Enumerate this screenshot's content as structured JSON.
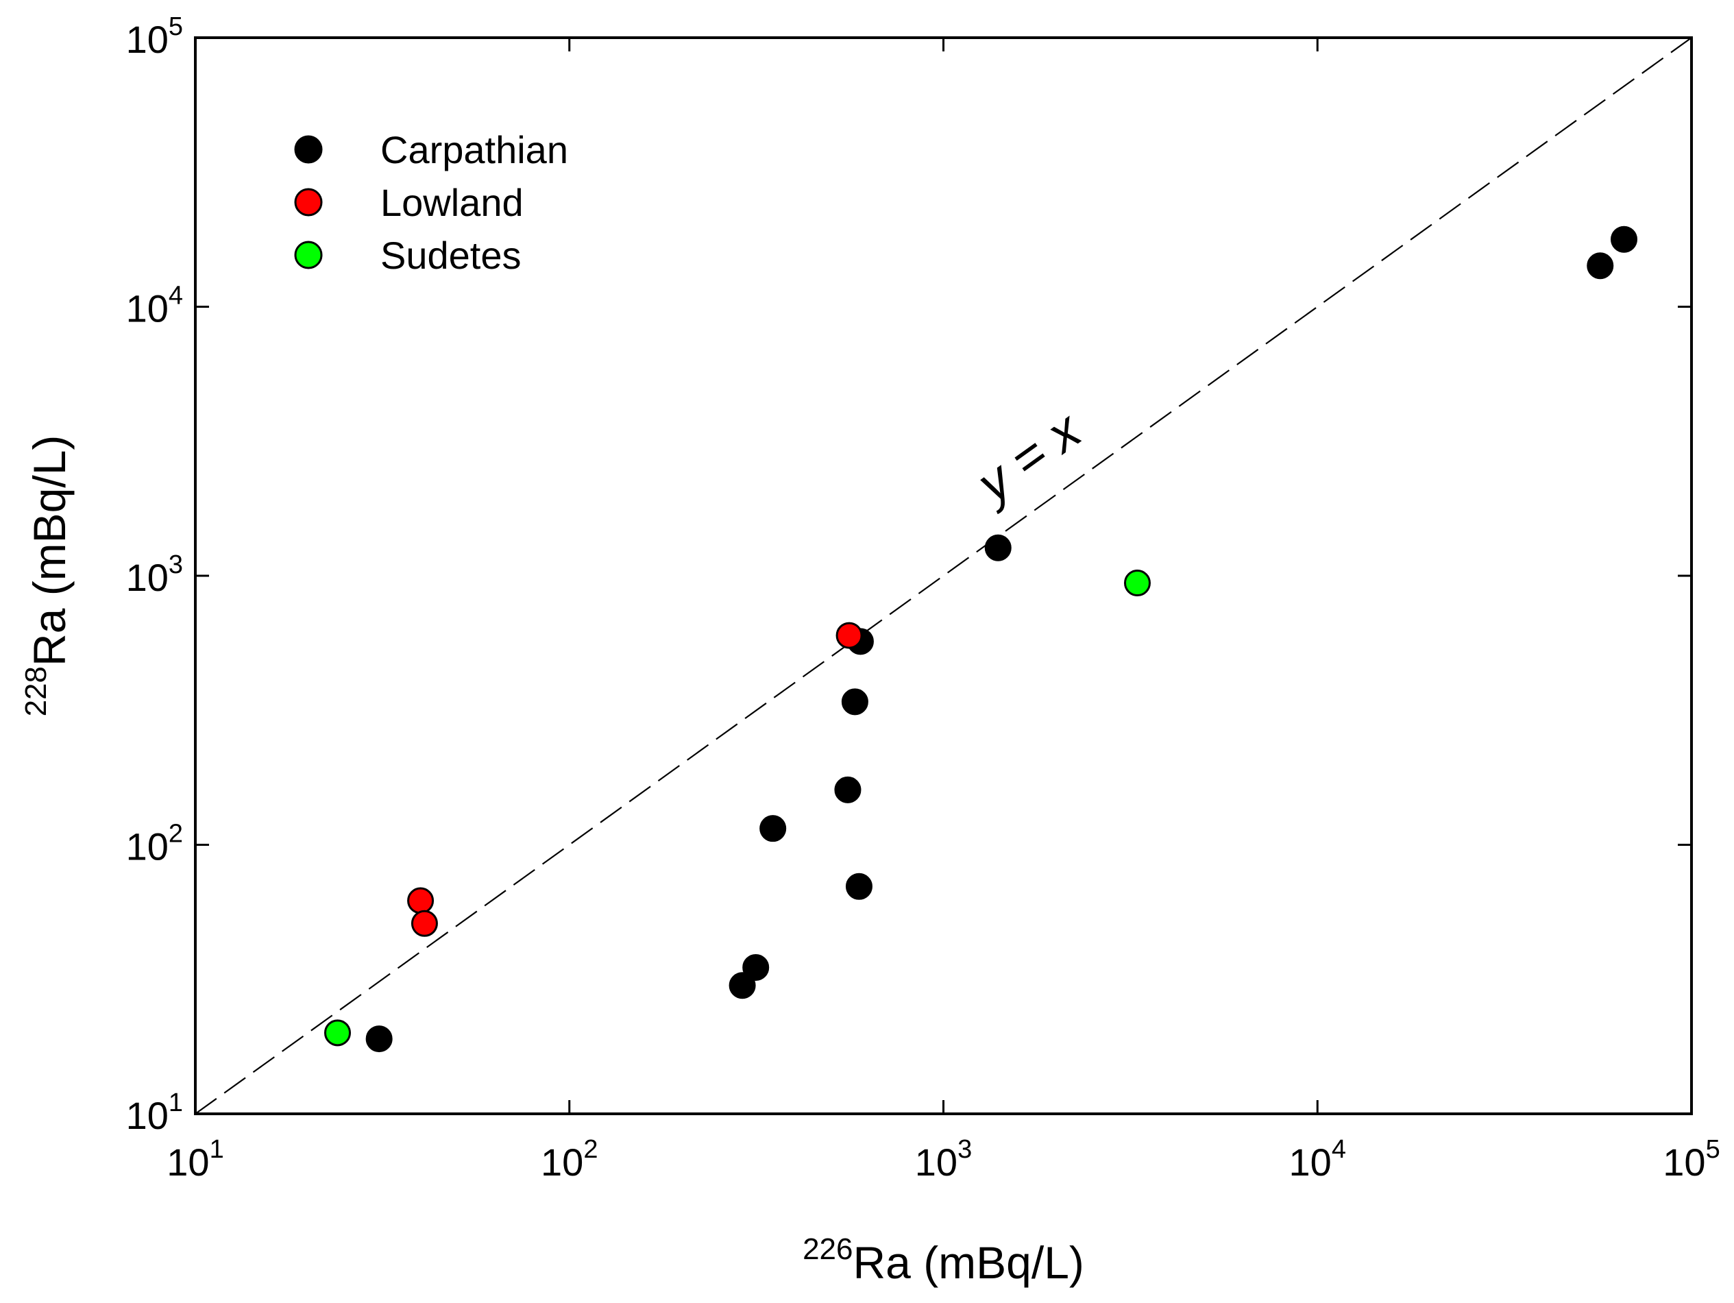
{
  "chart_data": {
    "type": "scatter",
    "title": "",
    "xscale": "log",
    "yscale": "log",
    "xlim": [
      10,
      100000
    ],
    "ylim": [
      10,
      100000
    ],
    "xlabel": {
      "iso": "226",
      "label": "Ra (mBq/L)"
    },
    "ylabel": {
      "iso": "228",
      "label": "Ra (mBq/L)"
    },
    "xticks": [
      {
        "value": 10,
        "base": "10",
        "exp": "1"
      },
      {
        "value": 100,
        "base": "10",
        "exp": "2"
      },
      {
        "value": 1000,
        "base": "10",
        "exp": "3"
      },
      {
        "value": 10000,
        "base": "10",
        "exp": "4"
      },
      {
        "value": 100000,
        "base": "10",
        "exp": "5"
      }
    ],
    "yticks": [
      {
        "value": 10,
        "base": "10",
        "exp": "1"
      },
      {
        "value": 100,
        "base": "10",
        "exp": "2"
      },
      {
        "value": 1000,
        "base": "10",
        "exp": "3"
      },
      {
        "value": 10000,
        "base": "10",
        "exp": "4"
      },
      {
        "value": 100000,
        "base": "10",
        "exp": "5"
      }
    ],
    "reference_line": {
      "label": "y = x",
      "style": "dashed"
    },
    "legend_position": "top-left",
    "series": [
      {
        "name": "Carpathian",
        "color": "#000000",
        "points": [
          {
            "x": 31,
            "y": 19
          },
          {
            "x": 290,
            "y": 30
          },
          {
            "x": 315,
            "y": 35
          },
          {
            "x": 350,
            "y": 115
          },
          {
            "x": 555,
            "y": 160
          },
          {
            "x": 580,
            "y": 340
          },
          {
            "x": 600,
            "y": 570
          },
          {
            "x": 595,
            "y": 70
          },
          {
            "x": 1400,
            "y": 1270
          },
          {
            "x": 57000,
            "y": 14200
          },
          {
            "x": 66000,
            "y": 17800
          }
        ]
      },
      {
        "name": "Lowland",
        "color": "#ff0000",
        "points": [
          {
            "x": 40,
            "y": 62
          },
          {
            "x": 41,
            "y": 51
          },
          {
            "x": 560,
            "y": 600
          }
        ]
      },
      {
        "name": "Sudetes",
        "color": "#00ff00",
        "points": [
          {
            "x": 24,
            "y": 20
          },
          {
            "x": 3300,
            "y": 940
          }
        ]
      }
    ]
  }
}
